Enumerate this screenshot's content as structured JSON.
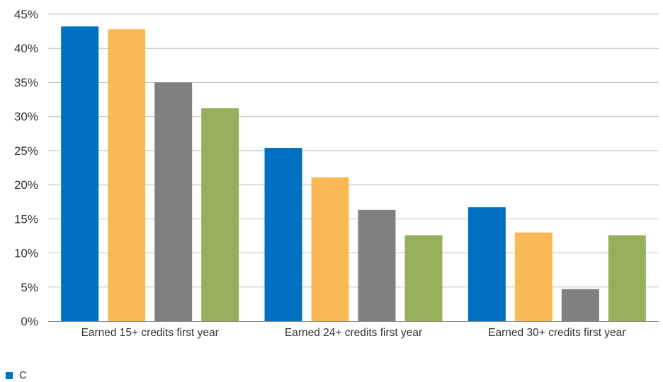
{
  "chart_data": {
    "type": "bar",
    "categories": [
      "Earned 15+ credits first year",
      "Earned 24+ credits first year",
      "Earned 30+ credits first year"
    ],
    "series": [
      {
        "name": "C",
        "values": [
          43.2,
          25.4,
          16.7
        ],
        "color": "#0070C0"
      },
      {
        "values": [
          42.8,
          21.1,
          13.0
        ],
        "color": "#FBB955"
      },
      {
        "values": [
          35.0,
          16.3,
          4.7
        ],
        "color": "#808080"
      },
      {
        "values": [
          31.2,
          12.6,
          12.6
        ],
        "color": "#97AE5B"
      }
    ],
    "y_ticks": [
      "0%",
      "5%",
      "10%",
      "15%",
      "20%",
      "25%",
      "30%",
      "35%",
      "40%",
      "45%"
    ],
    "ylim": [
      0,
      45
    ],
    "grid": true,
    "legend_position": "bottom-left"
  }
}
